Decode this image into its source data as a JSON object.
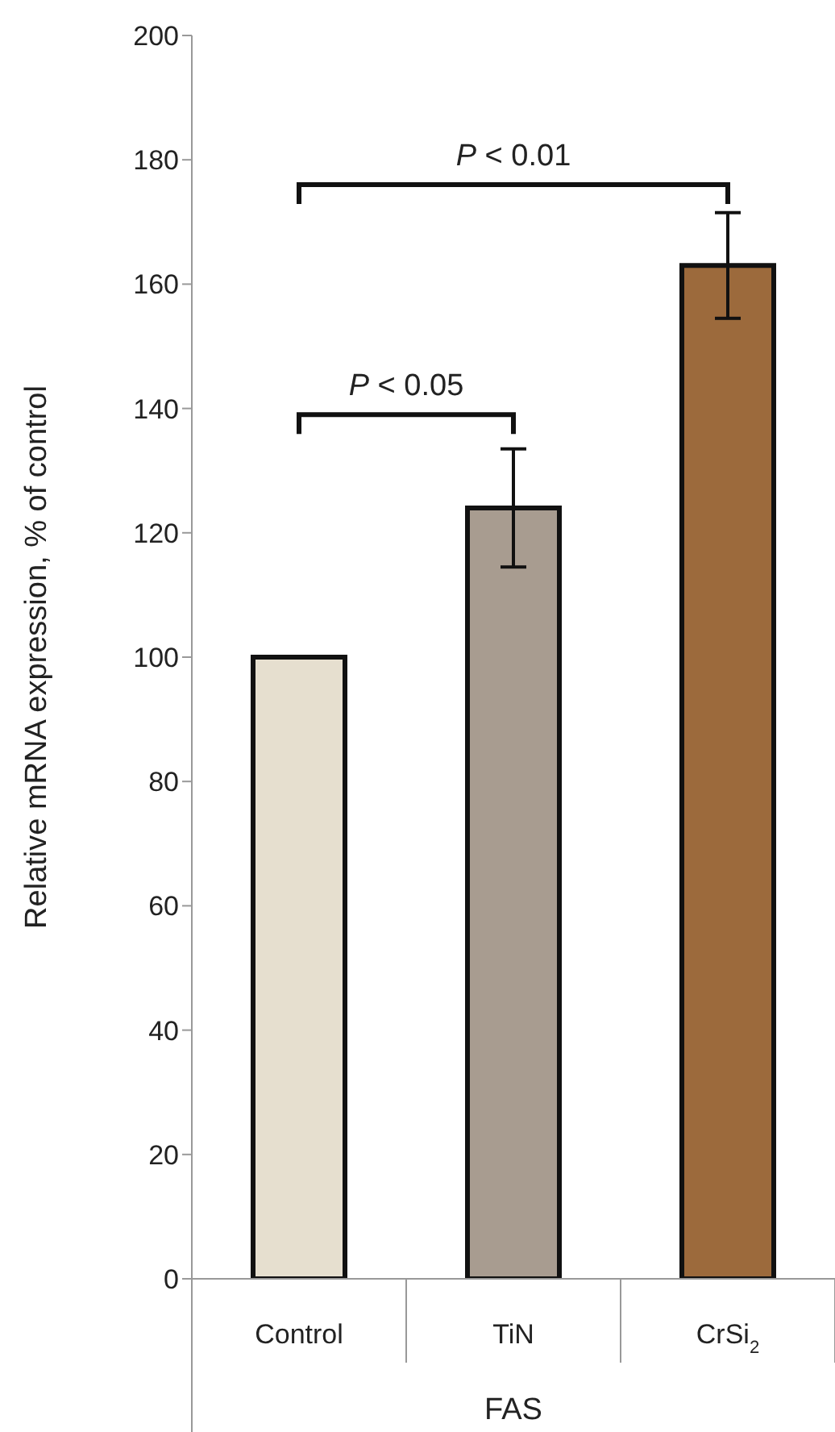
{
  "chart_data": {
    "type": "bar",
    "ylabel": "Relative mRNA expression, % of control",
    "xlabel": "FAS",
    "categories": [
      "Control",
      "TiN",
      "CrSi$_{2}$"
    ],
    "values": [
      100,
      124,
      163
    ],
    "colors": [
      "#e6dfcf",
      "#a89c90",
      "#9c6a3c"
    ],
    "errors": [
      null,
      9.5,
      8.5
    ],
    "ylim": [
      0,
      200
    ],
    "yticks": [
      0,
      20,
      40,
      60,
      80,
      100,
      120,
      140,
      160,
      180,
      200
    ],
    "annotations": [
      "P < 0.05",
      "P < 0.01"
    ]
  }
}
